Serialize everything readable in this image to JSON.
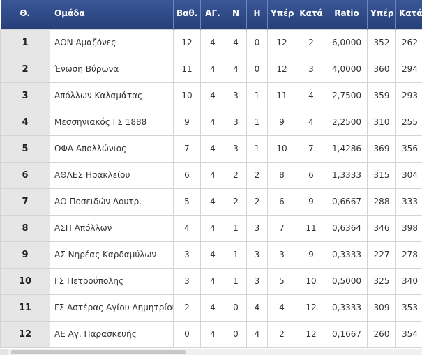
{
  "table": {
    "headers": {
      "pos": "Θ.",
      "team": "Ομάδα",
      "pts": "Βαθ.",
      "gp": "ΑΓ.",
      "w": "Ν",
      "l": "Η",
      "for1": "Υπέρ",
      "against1": "Κατά",
      "ratio": "Ratio",
      "for2": "Υπέρ",
      "against2": "Κατά"
    },
    "rows": [
      {
        "pos": "1",
        "team": "ΑΟΝ Αμαζόνες",
        "pts": "12",
        "gp": "4",
        "w": "4",
        "l": "0",
        "for1": "12",
        "against1": "2",
        "ratio": "6,0000",
        "for2": "352",
        "against2": "262"
      },
      {
        "pos": "2",
        "team": "Ένωση Βύρωνα",
        "pts": "11",
        "gp": "4",
        "w": "4",
        "l": "0",
        "for1": "12",
        "against1": "3",
        "ratio": "4,0000",
        "for2": "360",
        "against2": "294"
      },
      {
        "pos": "3",
        "team": "Απόλλων Καλαμάτας",
        "pts": "10",
        "gp": "4",
        "w": "3",
        "l": "1",
        "for1": "11",
        "against1": "4",
        "ratio": "2,7500",
        "for2": "359",
        "against2": "293"
      },
      {
        "pos": "4",
        "team": "Μεσσηνιακός ΓΣ 1888",
        "pts": "9",
        "gp": "4",
        "w": "3",
        "l": "1",
        "for1": "9",
        "against1": "4",
        "ratio": "2,2500",
        "for2": "310",
        "against2": "255"
      },
      {
        "pos": "5",
        "team": "ΟΦΑ Απολλώνιος",
        "pts": "7",
        "gp": "4",
        "w": "3",
        "l": "1",
        "for1": "10",
        "against1": "7",
        "ratio": "1,4286",
        "for2": "369",
        "against2": "356"
      },
      {
        "pos": "6",
        "team": "ΑΘΛΕΣ Ηρακλείου",
        "pts": "6",
        "gp": "4",
        "w": "2",
        "l": "2",
        "for1": "8",
        "against1": "6",
        "ratio": "1,3333",
        "for2": "315",
        "against2": "304"
      },
      {
        "pos": "7",
        "team": "ΑΟ Ποσειδών Λουτρ.",
        "pts": "5",
        "gp": "4",
        "w": "2",
        "l": "2",
        "for1": "6",
        "against1": "9",
        "ratio": "0,6667",
        "for2": "288",
        "against2": "333"
      },
      {
        "pos": "8",
        "team": "ΑΣΠ Απόλλων",
        "pts": "4",
        "gp": "4",
        "w": "1",
        "l": "3",
        "for1": "7",
        "against1": "11",
        "ratio": "0,6364",
        "for2": "346",
        "against2": "398"
      },
      {
        "pos": "9",
        "team": "ΑΣ Νηρέας Καρδαμύλων",
        "pts": "3",
        "gp": "4",
        "w": "1",
        "l": "3",
        "for1": "3",
        "against1": "9",
        "ratio": "0,3333",
        "for2": "227",
        "against2": "278"
      },
      {
        "pos": "10",
        "team": "ΓΣ Πετρούπολης",
        "pts": "3",
        "gp": "4",
        "w": "1",
        "l": "3",
        "for1": "5",
        "against1": "10",
        "ratio": "0,5000",
        "for2": "325",
        "against2": "340"
      },
      {
        "pos": "11",
        "team": "ΓΣ Αστέρας Αγίου Δημητρίου",
        "pts": "2",
        "gp": "4",
        "w": "0",
        "l": "4",
        "for1": "4",
        "against1": "12",
        "ratio": "0,3333",
        "for2": "309",
        "against2": "353"
      },
      {
        "pos": "12",
        "team": "ΑΕ Αγ. Παρασκευής",
        "pts": "0",
        "gp": "4",
        "w": "0",
        "l": "4",
        "for1": "2",
        "against1": "12",
        "ratio": "0,1667",
        "for2": "260",
        "against2": "354"
      }
    ]
  }
}
